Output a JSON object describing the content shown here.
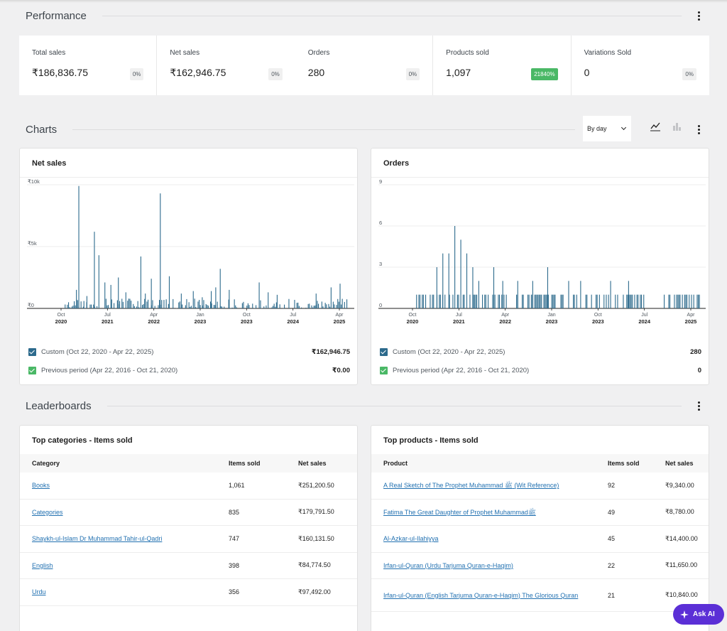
{
  "performance": {
    "title": "Performance",
    "metrics": [
      {
        "label": "Total sales",
        "value": "₹186,836.75",
        "delta": "0%",
        "positive": false
      },
      {
        "label": "Net sales",
        "value": "₹162,946.75",
        "delta": "0%",
        "positive": false
      },
      {
        "label": "Orders",
        "value": "280",
        "delta": "0%",
        "positive": false
      },
      {
        "label": "Products sold",
        "value": "1,097",
        "delta": "21840%",
        "positive": true
      },
      {
        "label": "Variations Sold",
        "value": "0",
        "delta": "0%",
        "positive": false
      }
    ]
  },
  "charts": {
    "title": "Charts",
    "interval": "By day",
    "icons": {
      "line": "line-chart-icon",
      "bar": "bar-chart-icon",
      "menu": "more-vertical-icon"
    }
  },
  "net_sales_chart": {
    "title": "Net sales",
    "y_ticks": [
      "₹10k",
      "₹5k",
      "₹0"
    ],
    "x_ticks": [
      {
        "m": "Oct",
        "y": "2020"
      },
      {
        "m": "Jul",
        "y": "2021"
      },
      {
        "m": "Apr",
        "y": "2022"
      },
      {
        "m": "Jan",
        "y": "2023"
      },
      {
        "m": "Oct",
        "y": "2023"
      },
      {
        "m": "Jul",
        "y": "2024"
      },
      {
        "m": "Apr",
        "y": "2025"
      }
    ],
    "legend": [
      {
        "label": "Custom (Oct 22, 2020 - Apr 22, 2025)",
        "value": "₹162,946.75",
        "color": "#2c6a8c"
      },
      {
        "label": "Previous period (Apr 22, 2016 - Oct 21, 2020)",
        "value": "₹0.00",
        "color": "#4ab866"
      }
    ]
  },
  "orders_chart": {
    "title": "Orders",
    "y_ticks": [
      "9",
      "6",
      "3",
      "0"
    ],
    "x_ticks": [
      {
        "m": "Oct",
        "y": "2020"
      },
      {
        "m": "Jul",
        "y": "2021"
      },
      {
        "m": "Apr",
        "y": "2022"
      },
      {
        "m": "Jan",
        "y": "2023"
      },
      {
        "m": "Oct",
        "y": "2023"
      },
      {
        "m": "Jul",
        "y": "2024"
      },
      {
        "m": "Apr",
        "y": "2025"
      }
    ],
    "legend": [
      {
        "label": "Custom (Oct 22, 2020 - Apr 22, 2025)",
        "value": "280",
        "color": "#2c6a8c"
      },
      {
        "label": "Previous period (Apr 22, 2016 - Oct 21, 2020)",
        "value": "0",
        "color": "#4ab866"
      }
    ]
  },
  "chart_data": [
    {
      "type": "bar",
      "title": "Net sales",
      "ylim": [
        0,
        10000
      ],
      "x": [
        "Oct 2020",
        "Jul 2021",
        "Apr 2022",
        "Jan 2023",
        "Oct 2023",
        "Jul 2024",
        "Apr 2025"
      ],
      "series": [
        {
          "name": "Custom (Oct 22, 2020 - Apr 22, 2025)",
          "peaks": [
            {
              "x": 0.05,
              "y": 1500
            },
            {
              "x": 0.058,
              "y": 9900
            },
            {
              "x": 0.075,
              "y": 600
            },
            {
              "x": 0.085,
              "y": 1000
            },
            {
              "x": 0.11,
              "y": 6200
            },
            {
              "x": 0.125,
              "y": 4300
            },
            {
              "x": 0.145,
              "y": 2100
            },
            {
              "x": 0.165,
              "y": 1900
            },
            {
              "x": 0.19,
              "y": 2500
            },
            {
              "x": 0.215,
              "y": 1300
            },
            {
              "x": 0.265,
              "y": 4200
            },
            {
              "x": 0.28,
              "y": 1200
            },
            {
              "x": 0.3,
              "y": 2400
            },
            {
              "x": 0.33,
              "y": 9300
            },
            {
              "x": 0.36,
              "y": 2600
            },
            {
              "x": 0.4,
              "y": 1200
            },
            {
              "x": 0.44,
              "y": 1400
            },
            {
              "x": 0.47,
              "y": 900
            },
            {
              "x": 0.5,
              "y": 1400
            },
            {
              "x": 0.515,
              "y": 1700
            },
            {
              "x": 0.53,
              "y": 3200
            },
            {
              "x": 0.56,
              "y": 1500
            },
            {
              "x": 0.66,
              "y": 2100
            },
            {
              "x": 0.69,
              "y": 1300
            },
            {
              "x": 0.72,
              "y": 1100
            },
            {
              "x": 0.85,
              "y": 1200
            },
            {
              "x": 0.9,
              "y": 1700
            },
            {
              "x": 0.93,
              "y": 2000
            }
          ]
        }
      ]
    },
    {
      "type": "bar",
      "title": "Orders",
      "ylim": [
        0,
        9
      ],
      "x": [
        "Oct 2020",
        "Jul 2021",
        "Apr 2022",
        "Jan 2023",
        "Oct 2023",
        "Jul 2024",
        "Apr 2025"
      ],
      "series": [
        {
          "name": "Custom (Oct 22, 2020 - Apr 22, 2025)",
          "peaks": [
            {
              "x": 0.08,
              "y": 3
            },
            {
              "x": 0.1,
              "y": 4
            },
            {
              "x": 0.12,
              "y": 4
            },
            {
              "x": 0.14,
              "y": 6
            },
            {
              "x": 0.16,
              "y": 5
            },
            {
              "x": 0.18,
              "y": 4
            },
            {
              "x": 0.2,
              "y": 3
            },
            {
              "x": 0.22,
              "y": 2
            },
            {
              "x": 0.27,
              "y": 3
            },
            {
              "x": 0.3,
              "y": 2
            },
            {
              "x": 0.35,
              "y": 2
            },
            {
              "x": 0.4,
              "y": 2
            },
            {
              "x": 0.45,
              "y": 3
            },
            {
              "x": 0.52,
              "y": 2
            },
            {
              "x": 0.56,
              "y": 2
            },
            {
              "x": 0.66,
              "y": 2
            },
            {
              "x": 0.72,
              "y": 2
            },
            {
              "x": 0.88,
              "y": 1
            },
            {
              "x": 0.93,
              "y": 1
            }
          ]
        }
      ]
    }
  ],
  "leaderboards": {
    "title": "Leaderboards",
    "categories": {
      "title": "Top categories - Items sold",
      "headers": [
        "Category",
        "Items sold",
        "Net sales"
      ],
      "rows": [
        {
          "name": "Books",
          "items": "1,061",
          "net": "₹251,200.50"
        },
        {
          "name": "Categories",
          "items": "835",
          "net": "₹179,791.50"
        },
        {
          "name": "Shaykh-ul-Islam Dr Muhammad Tahir-ul-Qadri",
          "items": "747",
          "net": "₹160,131.50"
        },
        {
          "name": "English",
          "items": "398",
          "net": "₹84,774.50"
        },
        {
          "name": "Urdu",
          "items": "356",
          "net": "₹97,492.00"
        }
      ]
    },
    "products": {
      "title": "Top products - Items sold",
      "headers": [
        "Product",
        "Items sold",
        "Net sales"
      ],
      "rows": [
        {
          "name": "A Real Sketch of The Prophet Muhammad ﷺ (Wit Reference)",
          "items": "92",
          "net": "₹9,340.00"
        },
        {
          "name": "Fatima The Great Daughter of Prophet Muhammadﷺ",
          "items": "49",
          "net": "₹8,780.00"
        },
        {
          "name": "Al-Azkar-ul-Ilahiyya",
          "items": "45",
          "net": "₹14,400.00"
        },
        {
          "name": "Irfan-ul-Quran (Urdu Tarjuma Quran-e-Haqim)",
          "items": "22",
          "net": "₹11,650.00"
        },
        {
          "name": "Irfan-ul-Quran (English Tarjuma Quran-e-Haqim) The Glorious Quran",
          "items": "21",
          "net": "₹10,840.00"
        }
      ]
    }
  },
  "ask_ai": {
    "label": "Ask AI",
    "color": "#5b2fd6"
  }
}
